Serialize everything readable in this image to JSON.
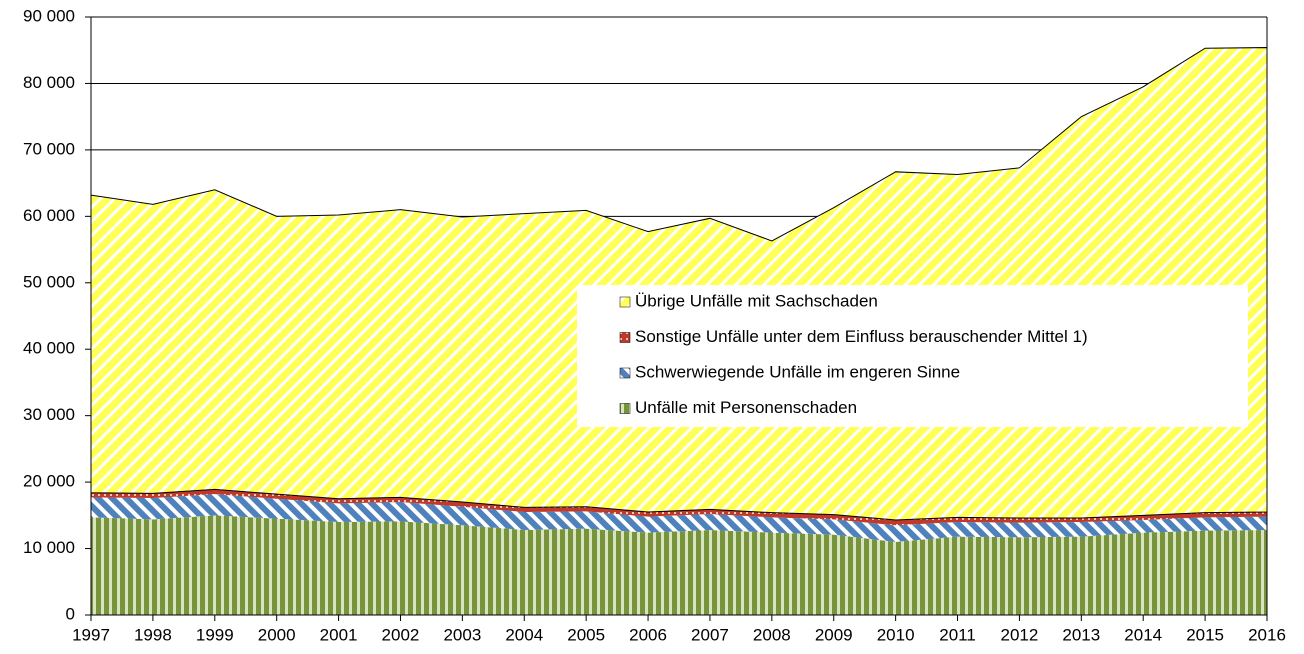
{
  "chart_data": {
    "type": "stacked_area",
    "categories": [
      "1997",
      "1998",
      "1999",
      "2000",
      "2001",
      "2002",
      "2003",
      "2004",
      "2005",
      "2006",
      "2007",
      "2008",
      "2009",
      "2010",
      "2011",
      "2012",
      "2013",
      "2014",
      "2015",
      "2016"
    ],
    "series": [
      {
        "name": "Unfälle mit Personenschaden",
        "color": "#77933c",
        "values": [
          14700,
          14400,
          15000,
          14500,
          14000,
          14100,
          13500,
          12800,
          13000,
          12400,
          12800,
          12400,
          12100,
          11000,
          11800,
          11700,
          11800,
          12400,
          12700,
          12800
        ]
      },
      {
        "name": "Schwerwiegende Unfälle im engeren Sinne",
        "color": "#4f81bd",
        "values": [
          3000,
          3200,
          3200,
          3000,
          2800,
          2900,
          2800,
          2700,
          2600,
          2400,
          2400,
          2300,
          2300,
          2500,
          2200,
          2200,
          2200,
          1900,
          2000,
          2000
        ]
      },
      {
        "name": "Sonstige Unfälle unter dem Einfluss berauschender Mittel 1)",
        "color": "#c0392b",
        "values": [
          700,
          700,
          700,
          700,
          700,
          700,
          700,
          700,
          700,
          700,
          700,
          700,
          700,
          800,
          700,
          700,
          600,
          700,
          700,
          700
        ]
      },
      {
        "name": "Übrige Unfälle mit Sachschaden",
        "color": "#ffff55",
        "values": [
          44800,
          43500,
          45100,
          41800,
          42700,
          43300,
          42900,
          44200,
          44600,
          42200,
          43800,
          40900,
          46200,
          52400,
          51600,
          52700,
          60400,
          64500,
          69900,
          69900
        ]
      }
    ],
    "ylim": [
      0,
      90000
    ],
    "yticks": [
      0,
      {
        "value": 10000,
        "label": "10 000"
      },
      {
        "value": 20000,
        "label": "20 000"
      },
      {
        "value": 30000,
        "label": "30 000"
      },
      {
        "value": 40000,
        "label": "40 000"
      },
      {
        "value": 50000,
        "label": "50 000"
      },
      {
        "value": 60000,
        "label": "60 000"
      },
      {
        "value": 70000,
        "label": "70 000"
      },
      {
        "value": 80000,
        "label": "80 000"
      },
      {
        "value": 90000,
        "label": "90 000"
      }
    ],
    "grid": true
  }
}
